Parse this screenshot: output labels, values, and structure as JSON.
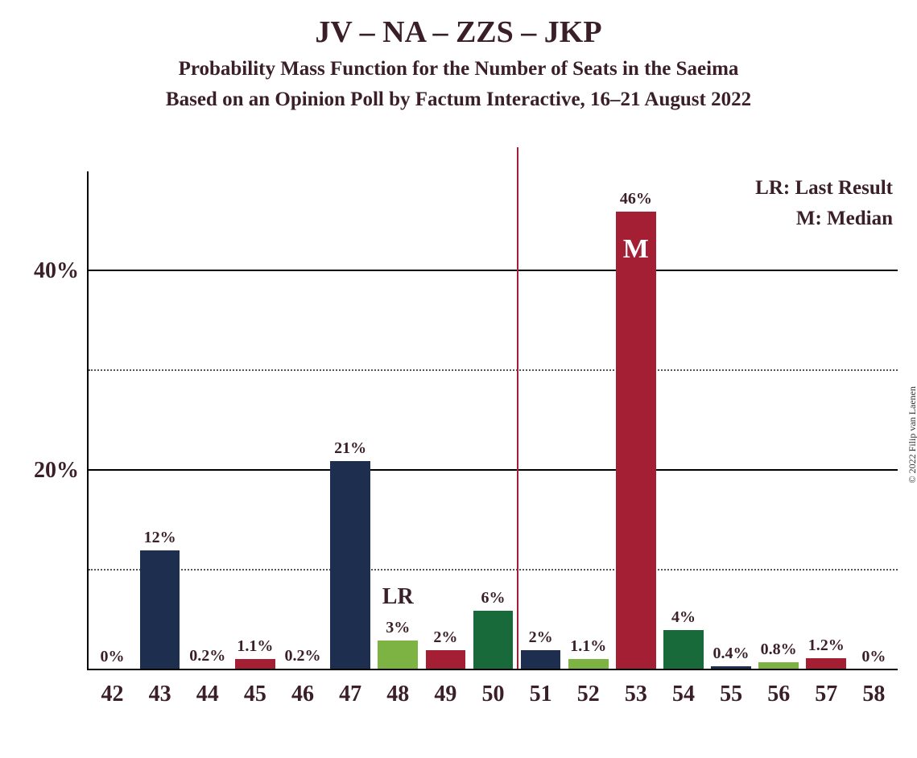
{
  "title": "JV – NA – ZZS – JKP",
  "subtitle1": "Probability Mass Function for the Number of Seats in the Saeima",
  "subtitle2": "Based on an Opinion Poll by Factum Interactive, 16–21 August 2022",
  "legend": {
    "lr": "LR: Last Result",
    "m": "M: Median"
  },
  "copyright": "© 2022 Filip van Laenen",
  "chart": {
    "type": "bar",
    "ymax": 50,
    "major_ticks": [
      20,
      40
    ],
    "minor_ticks": [
      10,
      30
    ],
    "y_tick_labels": {
      "20": "20%",
      "40": "40%"
    },
    "colors": {
      "navy": "#1e2e4f",
      "darkred": "#a41e34",
      "darkgreen": "#186a3b",
      "lightgreen": "#7cb342",
      "title": "#3b1f28",
      "grid_major": "#000000",
      "grid_minor": "#555555",
      "background": "#ffffff"
    },
    "median_seat": 53,
    "median_letter": "M",
    "majority_line_at": 50.5,
    "lr_seat": 48,
    "lr_text": "LR",
    "bars": [
      {
        "x": 42,
        "value": 0,
        "label": "0%",
        "color": "navy"
      },
      {
        "x": 43,
        "value": 12,
        "label": "12%",
        "color": "navy"
      },
      {
        "x": 44,
        "value": 0.2,
        "label": "0.2%",
        "color": "darkgreen"
      },
      {
        "x": 45,
        "value": 1.1,
        "label": "1.1%",
        "color": "darkred"
      },
      {
        "x": 46,
        "value": 0.2,
        "label": "0.2%",
        "color": "darkgreen"
      },
      {
        "x": 47,
        "value": 21,
        "label": "21%",
        "color": "navy"
      },
      {
        "x": 48,
        "value": 3,
        "label": "3%",
        "color": "lightgreen"
      },
      {
        "x": 49,
        "value": 2,
        "label": "2%",
        "color": "darkred"
      },
      {
        "x": 50,
        "value": 6,
        "label": "6%",
        "color": "darkgreen"
      },
      {
        "x": 51,
        "value": 2,
        "label": "2%",
        "color": "navy"
      },
      {
        "x": 52,
        "value": 1.1,
        "label": "1.1%",
        "color": "lightgreen"
      },
      {
        "x": 53,
        "value": 46,
        "label": "46%",
        "color": "darkred"
      },
      {
        "x": 54,
        "value": 4,
        "label": "4%",
        "color": "darkgreen"
      },
      {
        "x": 55,
        "value": 0.4,
        "label": "0.4%",
        "color": "navy"
      },
      {
        "x": 56,
        "value": 0.8,
        "label": "0.8%",
        "color": "lightgreen"
      },
      {
        "x": 57,
        "value": 1.2,
        "label": "1.2%",
        "color": "darkred"
      },
      {
        "x": 58,
        "value": 0,
        "label": "0%",
        "color": "darkgreen"
      }
    ]
  }
}
